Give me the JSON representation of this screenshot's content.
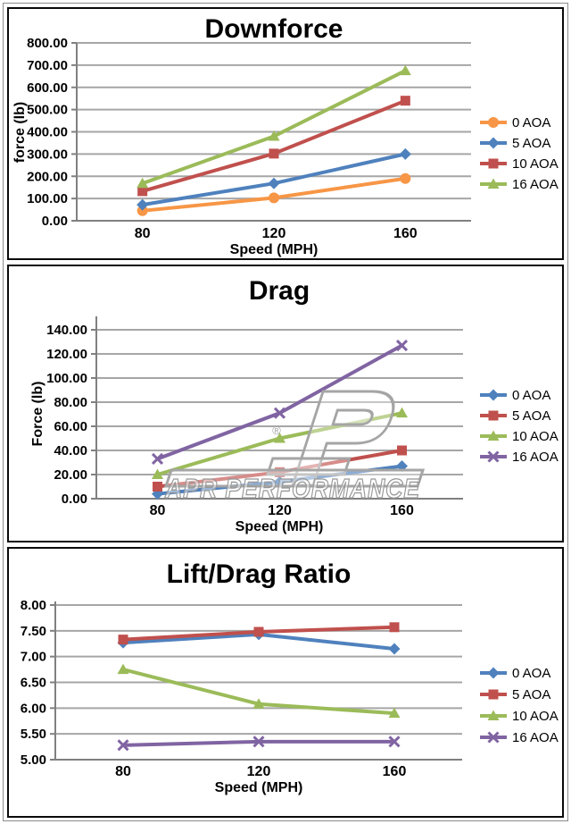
{
  "watermark": {
    "text": "APR PERFORMANCE",
    "registered": "®",
    "logo": "APR P logo"
  },
  "palette": {
    "orange": "#F79646",
    "blue": "#4F81BD",
    "red": "#C0504D",
    "green": "#9BBB59",
    "purple": "#8064A2",
    "gridline": "#A6A6A6",
    "axis": "#808080"
  },
  "chart_data": [
    {
      "type": "line",
      "title": "Downforce",
      "xlabel": "Speed (MPH)",
      "ylabel": "force (lb)",
      "categories": [
        "80",
        "120",
        "160"
      ],
      "ylim": [
        0,
        800
      ],
      "ytick_step": 100,
      "ytick_decimals": 2,
      "grid": true,
      "legend_position": "right",
      "series": [
        {
          "name": "0 AOA",
          "color": "#F79646",
          "marker": "circle",
          "values": [
            45,
            103,
            190
          ]
        },
        {
          "name": "5 AOA",
          "color": "#4F81BD",
          "marker": "diamond",
          "values": [
            72,
            168,
            300
          ]
        },
        {
          "name": "10 AOA",
          "color": "#C0504D",
          "marker": "square",
          "values": [
            133,
            302,
            540
          ]
        },
        {
          "name": "16 AOA",
          "color": "#9BBB59",
          "marker": "triangle",
          "values": [
            168,
            380,
            675
          ]
        }
      ]
    },
    {
      "type": "line",
      "title": "Drag",
      "xlabel": "Speed (MPH)",
      "ylabel": "Force (lb)",
      "categories": [
        "80",
        "120",
        "160"
      ],
      "ylim": [
        0,
        140
      ],
      "ytick_step": 20,
      "ytick_decimals": 2,
      "grid": true,
      "legend_position": "right",
      "series": [
        {
          "name": "0 AOA",
          "color": "#4F81BD",
          "marker": "diamond",
          "values": [
            4,
            14,
            27
          ]
        },
        {
          "name": "5 AOA",
          "color": "#C0504D",
          "marker": "square",
          "values": [
            10,
            22,
            40
          ]
        },
        {
          "name": "10 AOA",
          "color": "#9BBB59",
          "marker": "triangle",
          "values": [
            20,
            50,
            71
          ]
        },
        {
          "name": "16 AOA",
          "color": "#8064A2",
          "marker": "x",
          "values": [
            33,
            71,
            127
          ]
        }
      ]
    },
    {
      "type": "line",
      "title": "Lift/Drag Ratio",
      "xlabel": "Speed (MPH)",
      "ylabel": "",
      "categories": [
        "80",
        "120",
        "160"
      ],
      "ylim": [
        5,
        8
      ],
      "ytick_step": 0.5,
      "ytick_decimals": 2,
      "grid": true,
      "legend_position": "right",
      "series": [
        {
          "name": "0 AOA",
          "color": "#4F81BD",
          "marker": "diamond",
          "values": [
            7.27,
            7.43,
            7.15
          ]
        },
        {
          "name": "5 AOA",
          "color": "#C0504D",
          "marker": "square",
          "values": [
            7.33,
            7.48,
            7.57
          ]
        },
        {
          "name": "10 AOA",
          "color": "#9BBB59",
          "marker": "triangle",
          "values": [
            6.75,
            6.08,
            5.9
          ]
        },
        {
          "name": "16 AOA",
          "color": "#8064A2",
          "marker": "x",
          "values": [
            5.28,
            5.35,
            5.35
          ]
        }
      ]
    }
  ]
}
